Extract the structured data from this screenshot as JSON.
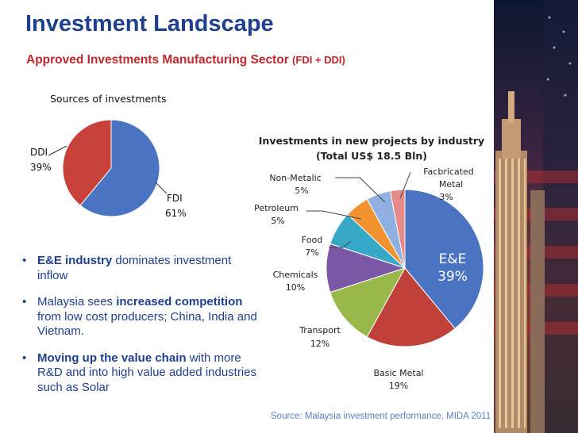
{
  "header": {
    "title": "Investment Landscape",
    "subtitle": "Approved Investments Manufacturing Sector",
    "subtitle_suffix": "(FDI + DDI)"
  },
  "colors": {
    "title": "#1f3f8f",
    "subtitle": "#c2272d",
    "bullet_text": "#1f3f8f",
    "source_text": "#5b7fc4"
  },
  "chart_data": [
    {
      "type": "pie",
      "title": "Sources of investments",
      "slices": [
        {
          "label": "FDI",
          "value": 61,
          "value_label": "61%",
          "color": "#4a74c2"
        },
        {
          "label": "DDI",
          "value": 39,
          "value_label": "39%",
          "color": "#c8403a"
        }
      ]
    },
    {
      "type": "pie",
      "title": "Investments in new projects by industry",
      "subtitle": "(Total US$ 18.5 Bln)",
      "slices": [
        {
          "label": "E&E",
          "value": 39,
          "value_label": "39%",
          "color": "#4a74c2"
        },
        {
          "label": "Basic Metal",
          "value": 19,
          "value_label": "19%",
          "color": "#c0403a"
        },
        {
          "label": "Transport",
          "value": 12,
          "value_label": "12%",
          "color": "#98b84a"
        },
        {
          "label": "Chemicals",
          "value": 10,
          "value_label": "10%",
          "color": "#7b58a6"
        },
        {
          "label": "Food",
          "value": 7,
          "value_label": "7%",
          "color": "#38a8c8"
        },
        {
          "label": "Petroleum",
          "value": 5,
          "value_label": "5%",
          "color": "#f29330"
        },
        {
          "label": "Non-Metalic",
          "value": 5,
          "value_label": "5%",
          "color": "#8fb0e0"
        },
        {
          "label": "Facbricated Metal",
          "value": 3,
          "value_label": "3%",
          "color": "#e88a8a"
        }
      ]
    }
  ],
  "bullets": [
    {
      "bold": "E&E industry",
      "text": " dominates investment inflow"
    },
    {
      "pre": "Malaysia sees ",
      "bold": "increased competition",
      "text": " from low cost producers; China, India and Vietnam."
    },
    {
      "bold": "Moving up the value chain",
      "text": " with more R&D and into high value added industries such as Solar"
    }
  ],
  "source": "Source: Malaysia investment performance, MIDA 2011"
}
